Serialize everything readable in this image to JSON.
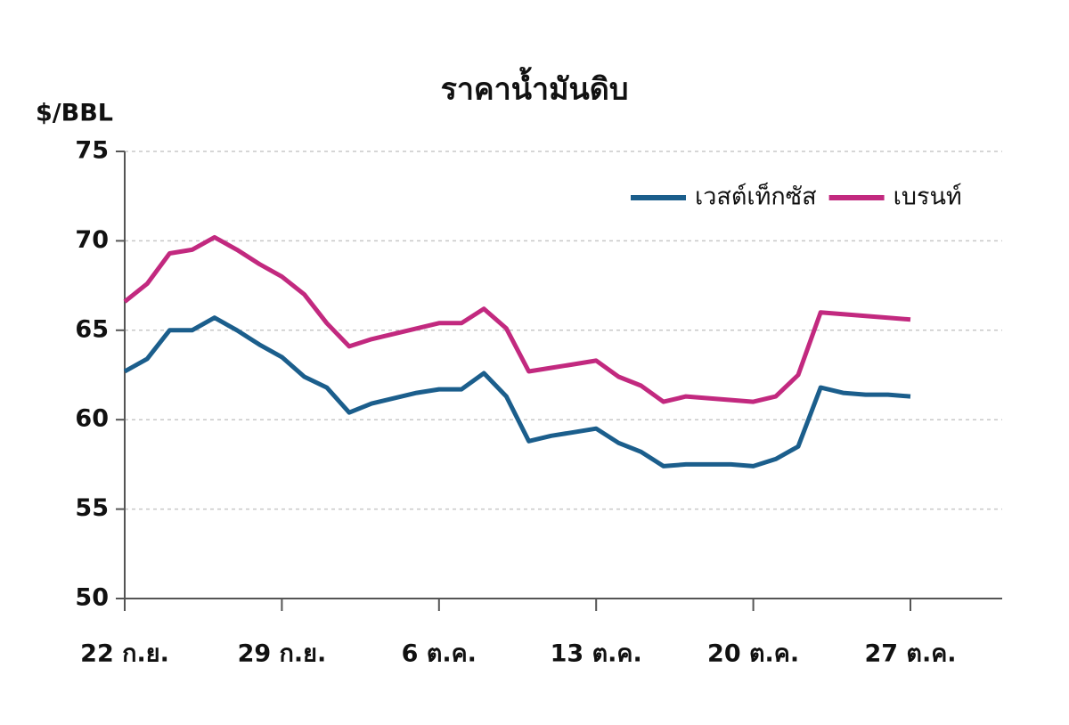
{
  "chart_data": {
    "type": "line",
    "title": "ราคาน้ำมันดิบ",
    "y_label": "$/BBL",
    "categories": [
      "22 ก.ย.",
      null,
      null,
      null,
      null,
      null,
      null,
      "29 ก.ย.",
      null,
      null,
      null,
      null,
      null,
      null,
      "6 ต.ค.",
      null,
      null,
      null,
      null,
      null,
      null,
      "13 ต.ค.",
      null,
      null,
      null,
      null,
      null,
      null,
      "20 ต.ค.",
      null,
      null,
      null,
      null,
      null,
      null,
      "27 ต.ค."
    ],
    "series": [
      {
        "name": "เวสต์เท็กซัส",
        "color": "#1b5e8c",
        "values": [
          62.7,
          63.4,
          65.0,
          65.0,
          65.7,
          65.0,
          64.2,
          63.5,
          62.4,
          61.8,
          60.4,
          60.9,
          61.2,
          61.5,
          61.7,
          61.7,
          62.6,
          61.3,
          58.8,
          59.1,
          59.3,
          59.5,
          58.7,
          58.2,
          57.4,
          57.5,
          57.5,
          57.5,
          57.4,
          57.8,
          58.5,
          61.8,
          61.5,
          61.4,
          61.4,
          61.3
        ]
      },
      {
        "name": "เบรนท์",
        "color": "#c2297f",
        "values": [
          66.6,
          67.6,
          69.3,
          69.5,
          70.2,
          69.5,
          68.7,
          68.0,
          67.0,
          65.4,
          64.1,
          64.5,
          64.8,
          65.1,
          65.4,
          65.4,
          66.2,
          65.1,
          62.7,
          62.9,
          63.1,
          63.3,
          62.4,
          61.9,
          61.0,
          61.3,
          61.2,
          61.1,
          61.0,
          61.3,
          62.5,
          66.0,
          65.9,
          65.8,
          65.7,
          65.6
        ]
      }
    ],
    "ylim": [
      50,
      75
    ],
    "yticks": [
      50,
      55,
      60,
      65,
      70,
      75
    ],
    "grid": true,
    "legend": "top-right"
  }
}
